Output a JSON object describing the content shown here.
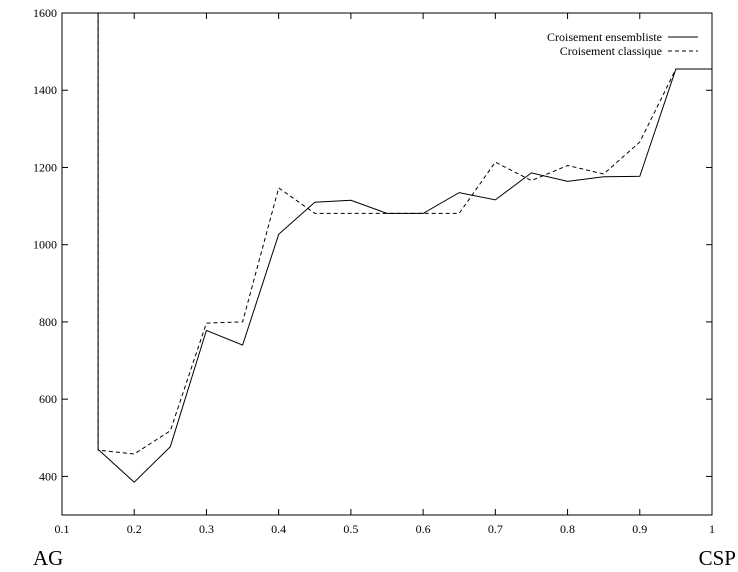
{
  "chart_data": {
    "type": "line",
    "title": "",
    "xlabel": "",
    "ylabel": "",
    "xlim": [
      0.1,
      1.0
    ],
    "ylim": [
      300,
      1600
    ],
    "x_ticks": [
      "0.1",
      "0.2",
      "0.3",
      "0.4",
      "0.5",
      "0.6",
      "0.7",
      "0.8",
      "0.9",
      "1"
    ],
    "y_ticks": [
      "400",
      "600",
      "800",
      "1000",
      "1200",
      "1400",
      "1600"
    ],
    "grid": false,
    "legend_position": "top-right",
    "corner_labels": {
      "left": "AG",
      "right": "CSP"
    },
    "series": [
      {
        "name": "Croisement ensembliste",
        "style": "solid",
        "color": "#000000",
        "points": [
          [
            0.15,
            1600
          ],
          [
            0.15,
            470
          ],
          [
            0.2,
            385
          ],
          [
            0.25,
            477
          ],
          [
            0.3,
            778
          ],
          [
            0.35,
            740
          ],
          [
            0.4,
            1027
          ],
          [
            0.45,
            1110
          ],
          [
            0.5,
            1115
          ],
          [
            0.55,
            1081
          ],
          [
            0.6,
            1081
          ],
          [
            0.65,
            1135
          ],
          [
            0.7,
            1116
          ],
          [
            0.75,
            1186
          ],
          [
            0.8,
            1164
          ],
          [
            0.85,
            1176
          ],
          [
            0.9,
            1177
          ],
          [
            0.95,
            1455
          ],
          [
            1.0,
            1455
          ]
        ]
      },
      {
        "name": "Croisement classique",
        "style": "dashed",
        "color": "#000000",
        "points": [
          [
            0.15,
            1600
          ],
          [
            0.15,
            468
          ],
          [
            0.2,
            458
          ],
          [
            0.25,
            518
          ],
          [
            0.3,
            797
          ],
          [
            0.35,
            800
          ],
          [
            0.4,
            1147
          ],
          [
            0.45,
            1081
          ],
          [
            0.5,
            1081
          ],
          [
            0.55,
            1081
          ],
          [
            0.6,
            1081
          ],
          [
            0.65,
            1081
          ],
          [
            0.7,
            1214
          ],
          [
            0.75,
            1166
          ],
          [
            0.8,
            1205
          ],
          [
            0.85,
            1183
          ],
          [
            0.9,
            1266
          ],
          [
            0.95,
            1455
          ],
          [
            1.0,
            1455
          ]
        ]
      }
    ]
  }
}
